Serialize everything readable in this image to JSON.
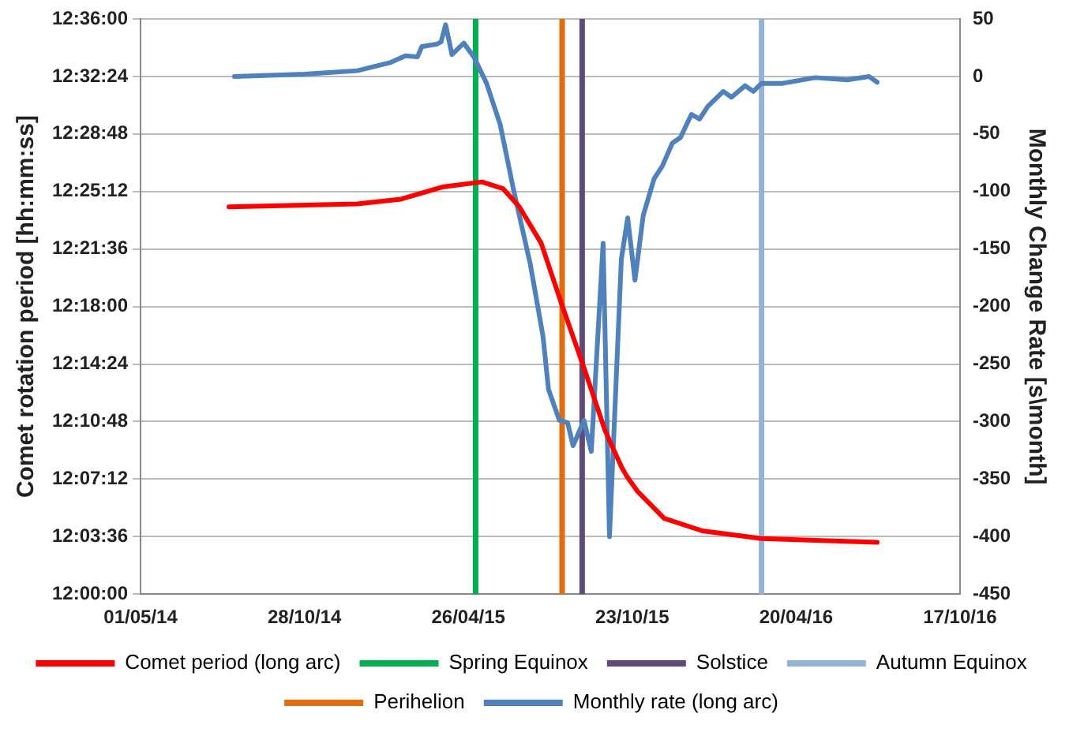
{
  "chart_data": {
    "type": "line",
    "ylabel": "Comet rotation period [hh:mm:ss]",
    "y2label": "Monthly Change Rate [s\\month]",
    "xlim": [
      "2014-05-01",
      "2016-10-17"
    ],
    "xticks": [
      {
        "value": "2014-05-01",
        "label": "01/05/14"
      },
      {
        "value": "2014-10-28",
        "label": "28/10/14"
      },
      {
        "value": "2015-04-26",
        "label": "26/04/15"
      },
      {
        "value": "2015-10-23",
        "label": "23/10/15"
      },
      {
        "value": "2016-04-20",
        "label": "20/04/16"
      },
      {
        "value": "2016-10-17",
        "label": "17/10/16"
      }
    ],
    "ylim": [
      12,
      12.6
    ],
    "yticks": [
      {
        "value": 12,
        "label": "12:00:00"
      },
      {
        "value": 12.06,
        "label": "12:03:36"
      },
      {
        "value": 12.12,
        "label": "12:07:12"
      },
      {
        "value": 12.18,
        "label": "12:10:48"
      },
      {
        "value": 12.24,
        "label": "12:14:24"
      },
      {
        "value": 12.3,
        "label": "12:18:00"
      },
      {
        "value": 12.36,
        "label": "12:21:36"
      },
      {
        "value": 12.42,
        "label": "12:25:12"
      },
      {
        "value": 12.48,
        "label": "12:28:48"
      },
      {
        "value": 12.54,
        "label": "12:32:24"
      },
      {
        "value": 12.6,
        "label": "12:36:00"
      }
    ],
    "y2lim": [
      -450,
      50
    ],
    "y2ticks": [
      -450,
      -400,
      -350,
      -300,
      -250,
      -200,
      -150,
      -100,
      -50,
      0,
      50
    ],
    "grid": "y",
    "legend": "bottom",
    "marker": "none",
    "line_style": "solid",
    "series": [
      {
        "name": "Comet period (long arc)",
        "color": "#ff0000",
        "x": [
          "2014-08-06",
          "2014-12-25",
          "2015-02-11",
          "2015-03-30",
          "2015-05-11",
          "2015-06-03",
          "2015-06-21",
          "2015-07-15",
          "2015-08-07",
          "2015-08-31",
          "2015-09-23",
          "2015-10-11",
          "2015-10-17",
          "2015-10-29",
          "2015-11-27",
          "2016-01-08",
          "2016-03-13",
          "2016-07-18"
        ],
        "values": [
          12.404,
          12.407,
          12.412,
          12.425,
          12.43,
          12.423,
          12.404,
          12.366,
          12.301,
          12.236,
          12.171,
          12.133,
          12.123,
          12.107,
          12.079,
          12.066,
          12.058,
          12.054
        ]
      },
      {
        "name": "Monthly rate (long arc)",
        "color": "#4f81bd",
        "axis": "y2",
        "x": [
          "2014-08-12",
          "2014-10-28",
          "2014-12-25",
          "2015-01-30",
          "2015-02-16",
          "2015-03-01",
          "2015-03-06",
          "2015-03-22",
          "2015-03-27",
          "2015-04-01",
          "2015-04-08",
          "2015-04-21",
          "2015-05-02",
          "2015-05-16",
          "2015-05-31",
          "2015-06-15",
          "2015-07-03",
          "2015-07-17",
          "2015-07-23",
          "2015-08-04",
          "2015-08-13",
          "2015-08-19",
          "2015-08-31",
          "2015-09-08",
          "2015-09-21",
          "2015-09-28",
          "2015-10-11",
          "2015-10-18",
          "2015-10-26",
          "2015-11-04",
          "2015-11-16",
          "2015-11-25",
          "2015-12-06",
          "2015-12-15",
          "2015-12-27",
          "2016-01-05",
          "2016-01-14",
          "2016-01-31",
          "2016-02-09",
          "2016-02-24",
          "2016-03-04",
          "2016-03-13",
          "2016-04-05",
          "2016-05-11",
          "2016-06-15",
          "2016-07-09",
          "2016-07-18"
        ],
        "values": [
          0,
          2,
          5,
          12,
          18,
          17,
          26,
          28,
          30,
          45,
          19,
          29,
          17,
          -6,
          -42,
          -100,
          -163,
          -226,
          -272,
          -299,
          -301,
          -321,
          -299,
          -326,
          -145,
          -400,
          -159,
          -123,
          -177,
          -121,
          -89,
          -78,
          -58,
          -53,
          -33,
          -37,
          -26,
          -13,
          -18,
          -8,
          -13,
          -6,
          -6,
          -1,
          -3,
          0,
          -5
        ]
      }
    ],
    "ref_lines": [
      {
        "axis": "x",
        "value": "2015-05-04",
        "label": "Spring Equinox",
        "color": "#00b050"
      },
      {
        "axis": "x",
        "value": "2015-08-29",
        "label": "Solstice",
        "color": "#604a7b"
      },
      {
        "axis": "x",
        "value": "2016-03-13",
        "label": "Autumn Equinox",
        "color": "#95b3d7"
      },
      {
        "axis": "x",
        "value": "2015-08-07",
        "label": "Perihelion",
        "color": "#e46c0a"
      }
    ]
  }
}
